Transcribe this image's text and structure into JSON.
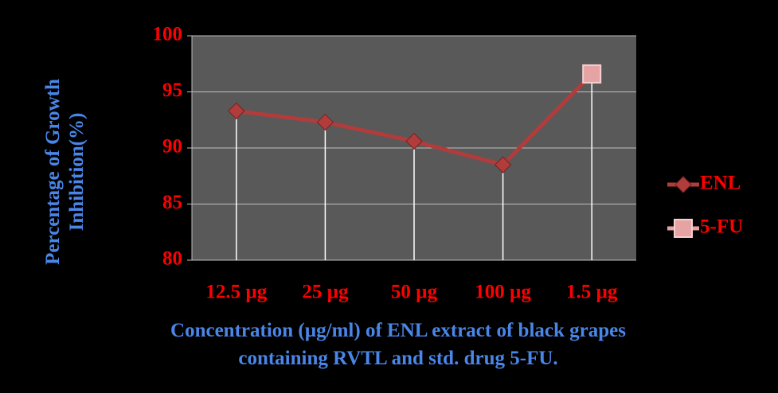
{
  "chart_data": {
    "type": "line",
    "y_label": "Percentage of Growth Inhibition(%)",
    "x_label": "Concentration (µg/ml) of  ENL extract of black grapes containing RVTL and std. drug 5-FU.",
    "categories": [
      "12.5 µg",
      "25 µg",
      "50 µg",
      "100 µg",
      "1.5 µg"
    ],
    "series": [
      {
        "name": "ENL",
        "color": "#b03c3c",
        "values": [
          93.3,
          92.3,
          90.6,
          88.5,
          96.6
        ]
      },
      {
        "name": "5-FU",
        "color": "#e6a3a3",
        "values": [
          null,
          null,
          null,
          null,
          96.6
        ]
      }
    ],
    "ylim": [
      80,
      100
    ],
    "yticks": [
      80,
      85,
      90,
      95,
      100
    ],
    "grid": true,
    "legend": "right"
  }
}
